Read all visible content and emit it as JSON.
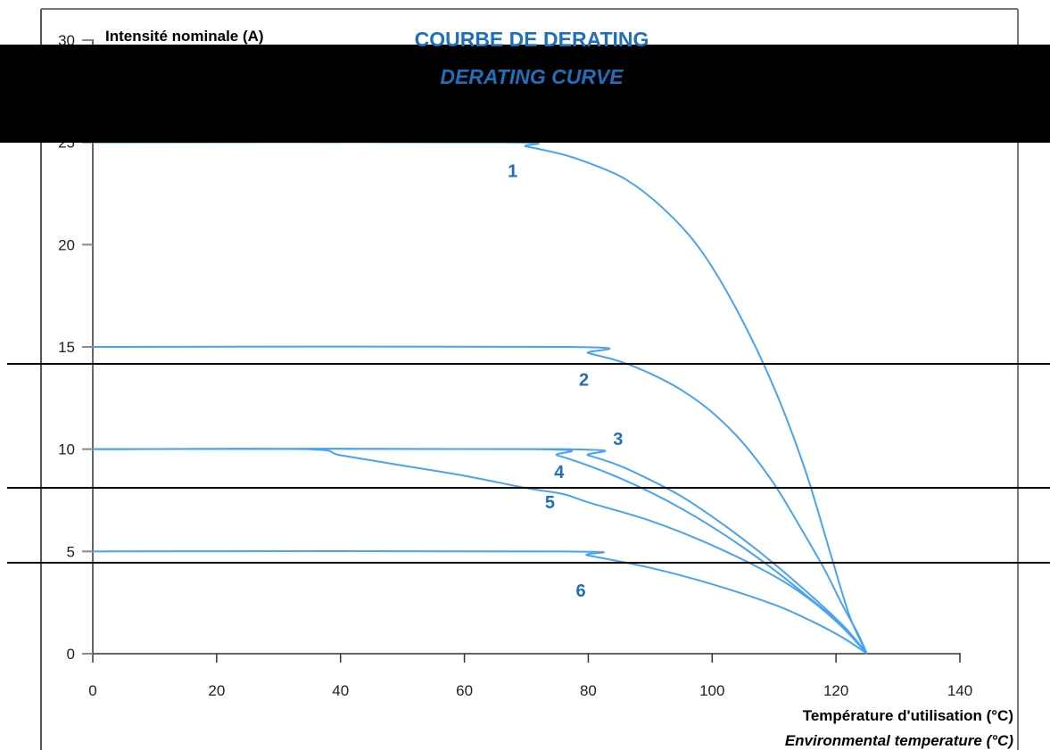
{
  "colors": {
    "curve": "#4aa3f0",
    "label": "#1f6fba",
    "title": "#1f6fba",
    "axis": "#333333",
    "overlay": "#000000"
  },
  "chart_data": {
    "type": "line",
    "title": "COURBE DE DERATING",
    "subtitle": "DERATING CURVE",
    "ylabel": "Intensité nominale (A)",
    "xlabel": "Température d'utilisation (°C)",
    "xlabel2": "Environmental temperature (°C)",
    "xlim": [
      0,
      140
    ],
    "ylim": [
      0,
      30
    ],
    "x_ticks": [
      0,
      20,
      40,
      60,
      80,
      100,
      120,
      140
    ],
    "y_ticks": [
      0,
      5,
      10,
      15,
      20,
      25,
      30
    ],
    "grid": false,
    "series": [
      {
        "name": "1",
        "label_at": [
          67,
          23.3
        ],
        "points": [
          [
            0,
            25
          ],
          [
            66,
            25
          ],
          [
            70,
            24.8
          ],
          [
            76,
            24.4
          ],
          [
            80,
            24.0
          ],
          [
            86,
            23.2
          ],
          [
            92,
            21.8
          ],
          [
            98,
            19.8
          ],
          [
            104,
            16.8
          ],
          [
            110,
            13.0
          ],
          [
            115,
            9.0
          ],
          [
            119,
            5.0
          ],
          [
            122,
            2.0
          ],
          [
            124,
            0.6
          ],
          [
            125,
            0
          ]
        ]
      },
      {
        "name": "2",
        "label_at": [
          78.5,
          13.1
        ],
        "points": [
          [
            0,
            15
          ],
          [
            77,
            15
          ],
          [
            80,
            14.7
          ],
          [
            85,
            14.3
          ],
          [
            90,
            13.7
          ],
          [
            95,
            12.9
          ],
          [
            100,
            11.8
          ],
          [
            105,
            10.3
          ],
          [
            110,
            8.3
          ],
          [
            114,
            6.3
          ],
          [
            118,
            4.2
          ],
          [
            121,
            2.4
          ],
          [
            123.5,
            1.0
          ],
          [
            125,
            0
          ]
        ]
      },
      {
        "name": "3",
        "label_at": [
          84,
          10.2
        ],
        "points": [
          [
            0,
            10
          ],
          [
            76,
            10
          ],
          [
            80,
            9.7
          ],
          [
            85,
            9.2
          ],
          [
            90,
            8.5
          ],
          [
            95,
            7.7
          ],
          [
            100,
            6.7
          ],
          [
            105,
            5.6
          ],
          [
            110,
            4.4
          ],
          [
            115,
            3.1
          ],
          [
            119,
            2.0
          ],
          [
            122,
            1.1
          ],
          [
            125,
            0
          ]
        ]
      },
      {
        "name": "4",
        "label_at": [
          74.5,
          8.6
        ],
        "points": [
          [
            0,
            10
          ],
          [
            71,
            10
          ],
          [
            75,
            9.7
          ],
          [
            80,
            9.2
          ],
          [
            85,
            8.6
          ],
          [
            90,
            7.9
          ],
          [
            95,
            7.1
          ],
          [
            100,
            6.2
          ],
          [
            105,
            5.2
          ],
          [
            110,
            4.1
          ],
          [
            115,
            2.9
          ],
          [
            119,
            1.9
          ],
          [
            122,
            1.0
          ],
          [
            125,
            0
          ]
        ]
      },
      {
        "name": "5",
        "label_at": [
          73,
          7.1
        ],
        "points": [
          [
            0,
            10
          ],
          [
            34,
            10
          ],
          [
            40,
            9.7
          ],
          [
            50,
            9.2
          ],
          [
            60,
            8.7
          ],
          [
            70,
            8.1
          ],
          [
            76,
            7.8
          ],
          [
            80,
            7.4
          ],
          [
            90,
            6.5
          ],
          [
            100,
            5.3
          ],
          [
            110,
            3.8
          ],
          [
            116,
            2.6
          ],
          [
            121,
            1.3
          ],
          [
            125,
            0
          ]
        ]
      },
      {
        "name": "6",
        "label_at": [
          78,
          2.8
        ],
        "points": [
          [
            0,
            5
          ],
          [
            76,
            5
          ],
          [
            80,
            4.8
          ],
          [
            90,
            4.2
          ],
          [
            100,
            3.4
          ],
          [
            110,
            2.4
          ],
          [
            116,
            1.6
          ],
          [
            121,
            0.8
          ],
          [
            125,
            0
          ]
        ]
      }
    ]
  }
}
